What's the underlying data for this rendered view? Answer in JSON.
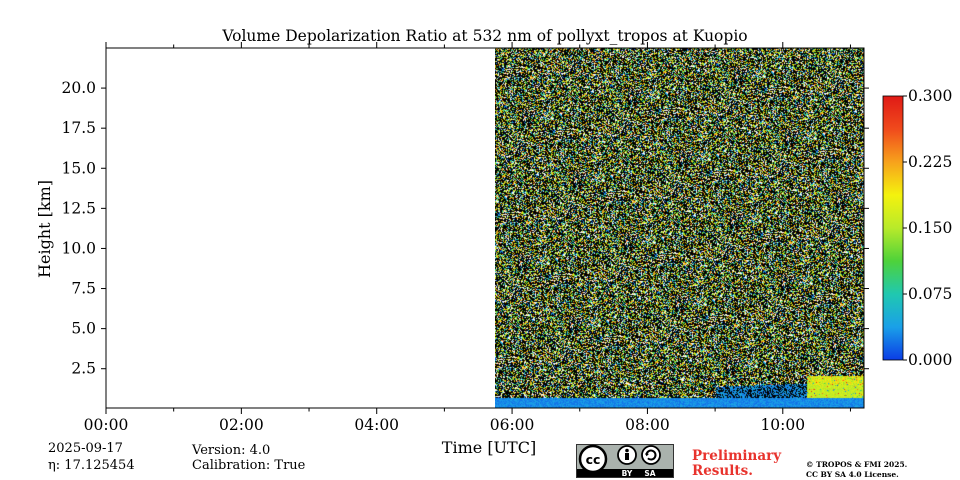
{
  "chart_data": {
    "type": "heatmap",
    "title": "Volume Depolarization Ratio at 532 nm of pollyxt_tropos at Kuopio",
    "xlabel": "Time [UTC]",
    "ylabel": "Height [km]",
    "x_unit": "hours UTC",
    "xlim": [
      0,
      11.2
    ],
    "ylim": [
      0.05,
      22.5
    ],
    "xticks": [
      {
        "value": 0,
        "label": "00:00"
      },
      {
        "value": 2,
        "label": "02:00"
      },
      {
        "value": 4,
        "label": "04:00"
      },
      {
        "value": 6,
        "label": "06:00"
      },
      {
        "value": 8,
        "label": "08:00"
      },
      {
        "value": 10,
        "label": "10:00"
      }
    ],
    "yticks": [
      {
        "value": 2.5,
        "label": "2.5"
      },
      {
        "value": 5.0,
        "label": "5.0"
      },
      {
        "value": 7.5,
        "label": "7.5"
      },
      {
        "value": 10.0,
        "label": "10.0"
      },
      {
        "value": 12.5,
        "label": "12.5"
      },
      {
        "value": 15.0,
        "label": "15.0"
      },
      {
        "value": 17.5,
        "label": "17.5"
      },
      {
        "value": 20.0,
        "label": "20.0"
      }
    ],
    "data_start_time": 5.75,
    "data_end_time": 11.2,
    "noise_description": "noisy random signal above ~0.8 km",
    "regions": [
      {
        "name": "near-surface layer",
        "t_start": 5.75,
        "t_end": 11.2,
        "h_top": 0.7,
        "value": 0.03
      },
      {
        "name": "aerosol layer",
        "t_start": 10.35,
        "t_end": 11.2,
        "h_top": 2.1,
        "value": 0.16
      }
    ],
    "colorbar": {
      "min": 0.0,
      "max": 0.3,
      "ticks": [
        {
          "value": 0.0,
          "label": "0.000"
        },
        {
          "value": 0.075,
          "label": "0.075"
        },
        {
          "value": 0.15,
          "label": "0.150"
        },
        {
          "value": 0.225,
          "label": "0.225"
        },
        {
          "value": 0.3,
          "label": "0.300"
        }
      ],
      "colors": [
        "#0b3ce6",
        "#1aa0e8",
        "#20c8b0",
        "#4ed23a",
        "#b8ea2a",
        "#f4f20e",
        "#f7a21c",
        "#f04a1c",
        "#e01a16"
      ]
    }
  },
  "footer": {
    "date": "2025-09-17",
    "eta": "η: 17.125454",
    "version": "Version: 4.0",
    "calibration": "Calibration: True",
    "preliminary_line1": "Preliminary",
    "preliminary_line2": "Results.",
    "license_line1": "© TROPOS & FMI 2025.",
    "license_line2": "CC BY SA 4.0 License.",
    "cc_badge_by": "BY",
    "cc_badge_sa": "SA"
  }
}
